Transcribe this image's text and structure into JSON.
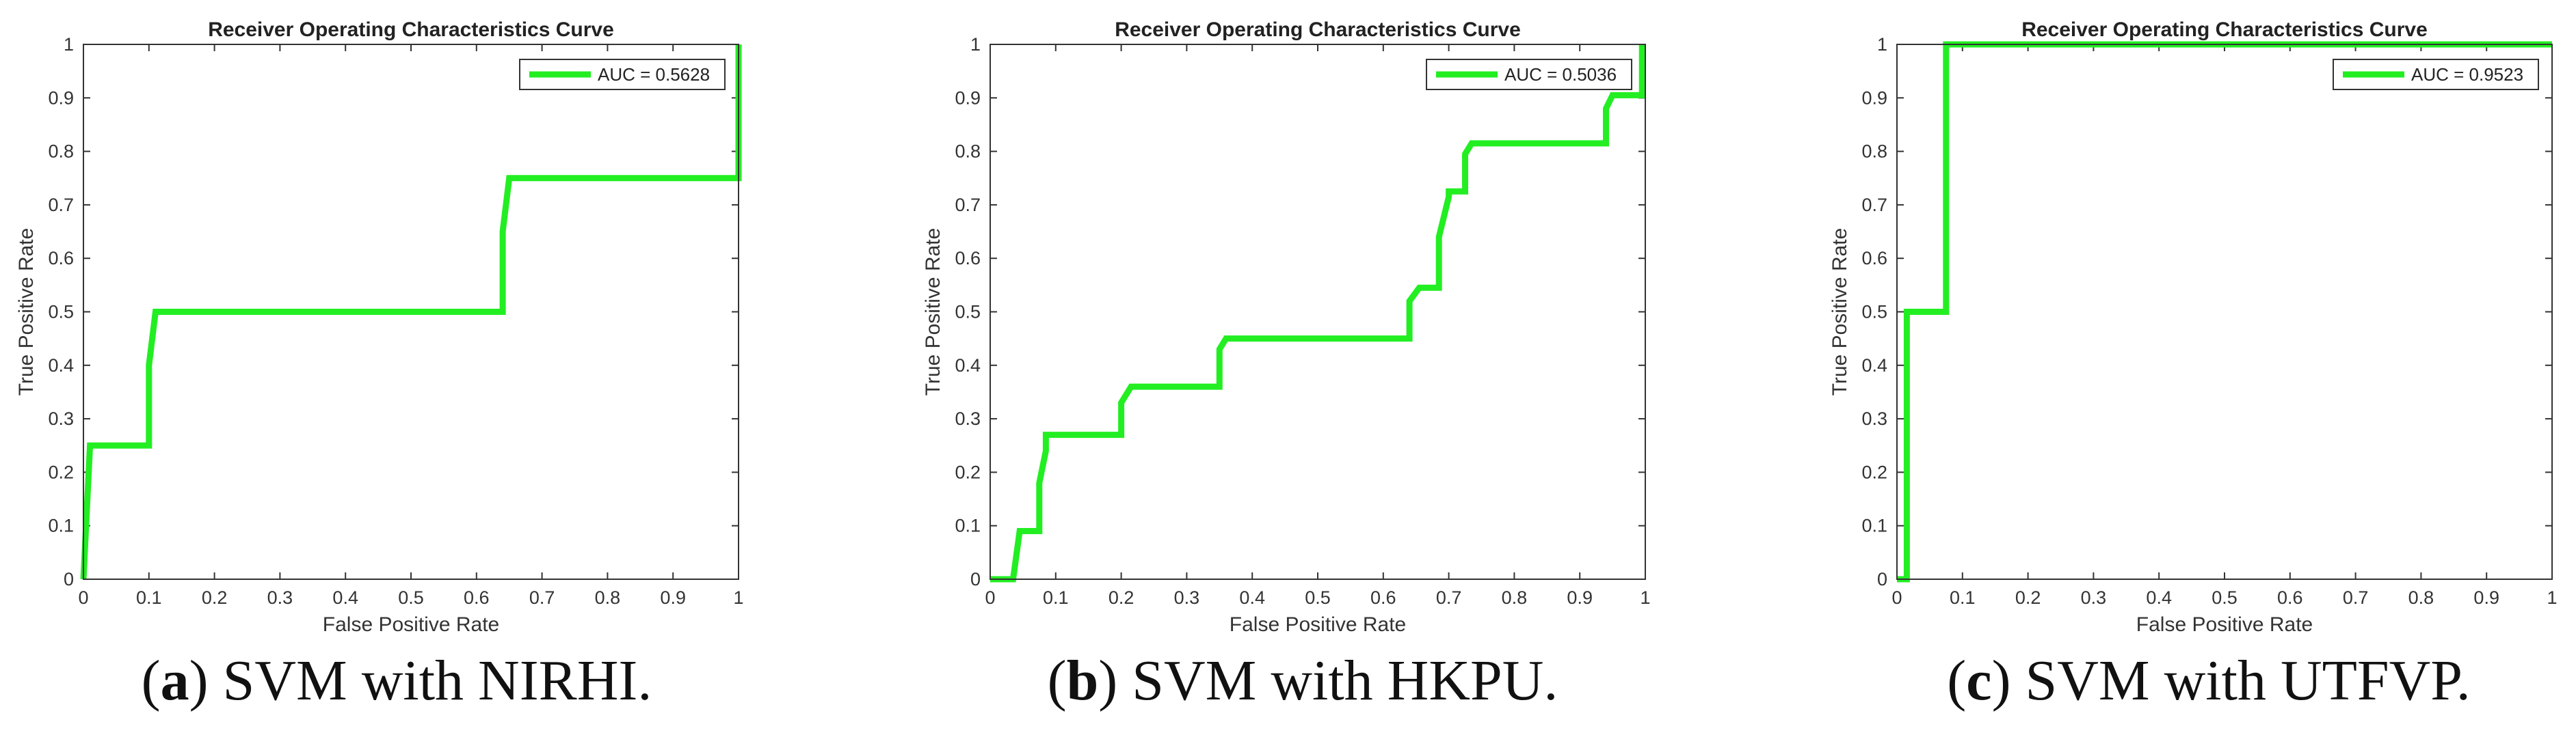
{
  "figure": {
    "line_color": "#22ee22"
  },
  "chart_data": [
    {
      "type": "line",
      "title": "Receiver Operating Characteristics Curve",
      "xlabel": "False Positive Rate",
      "ylabel": "True Positive Rate",
      "xlim": [
        0,
        1
      ],
      "ylim": [
        0,
        1
      ],
      "xticks": [
        "0",
        "0.1",
        "0.2",
        "0.3",
        "0.4",
        "0.5",
        "0.6",
        "0.7",
        "0.8",
        "0.9",
        "1"
      ],
      "yticks": [
        "0",
        "0.1",
        "0.2",
        "0.3",
        "0.4",
        "0.5",
        "0.6",
        "0.7",
        "0.8",
        "0.9",
        "1"
      ],
      "legend": "top-right",
      "grid": false,
      "series": [
        {
          "name": "AUC = 0.5628",
          "color": "#22ee22",
          "x": [
            0,
            0.01,
            0.01,
            0.1,
            0.1,
            0.11,
            0.11,
            0.64,
            0.64,
            0.65,
            0.65,
            1.0,
            1.0
          ],
          "y": [
            0,
            0.25,
            0.25,
            0.25,
            0.4,
            0.5,
            0.5,
            0.5,
            0.65,
            0.75,
            0.75,
            0.75,
            1.0
          ]
        }
      ],
      "caption": {
        "label": "a",
        "text": ") SVM with NIRHI."
      }
    },
    {
      "type": "line",
      "title": "Receiver Operating Characteristics Curve",
      "xlabel": "False Positive Rate",
      "ylabel": "True Positive Rate",
      "xlim": [
        0,
        1
      ],
      "ylim": [
        0,
        1
      ],
      "xticks": [
        "0",
        "0.1",
        "0.2",
        "0.3",
        "0.4",
        "0.5",
        "0.6",
        "0.7",
        "0.8",
        "0.9",
        "1"
      ],
      "yticks": [
        "0",
        "0.1",
        "0.2",
        "0.3",
        "0.4",
        "0.5",
        "0.6",
        "0.7",
        "0.8",
        "0.9",
        "1"
      ],
      "legend": "top-right",
      "grid": false,
      "series": [
        {
          "name": "AUC = 0.5036",
          "color": "#22ee22",
          "x": [
            0,
            0.035,
            0.045,
            0.045,
            0.075,
            0.075,
            0.085,
            0.085,
            0.2,
            0.2,
            0.215,
            0.215,
            0.35,
            0.35,
            0.36,
            0.36,
            0.64,
            0.64,
            0.655,
            0.655,
            0.685,
            0.685,
            0.7,
            0.7,
            0.725,
            0.725,
            0.735,
            0.735,
            0.94,
            0.94,
            0.95,
            0.95,
            0.995,
            0.995
          ],
          "y": [
            0,
            0,
            0.09,
            0.09,
            0.09,
            0.18,
            0.24,
            0.27,
            0.27,
            0.33,
            0.36,
            0.36,
            0.36,
            0.43,
            0.45,
            0.45,
            0.45,
            0.52,
            0.545,
            0.545,
            0.545,
            0.64,
            0.715,
            0.725,
            0.725,
            0.795,
            0.815,
            0.815,
            0.815,
            0.88,
            0.905,
            0.905,
            0.905,
            1.0
          ]
        }
      ],
      "caption": {
        "label": "b",
        "text": ") SVM with HKPU."
      }
    },
    {
      "type": "line",
      "title": "Receiver Operating Characteristics Curve",
      "xlabel": "False Positive Rate",
      "ylabel": "True Positive Rate",
      "xlim": [
        0,
        1
      ],
      "ylim": [
        0,
        1
      ],
      "xticks": [
        "0",
        "0.1",
        "0.2",
        "0.3",
        "0.4",
        "0.5",
        "0.6",
        "0.7",
        "0.8",
        "0.9",
        "1"
      ],
      "yticks": [
        "0",
        "0.1",
        "0.2",
        "0.3",
        "0.4",
        "0.5",
        "0.6",
        "0.7",
        "0.8",
        "0.9",
        "1"
      ],
      "legend": "top-right",
      "grid": false,
      "series": [
        {
          "name": "AUC = 0.9523",
          "color": "#22ee22",
          "x": [
            0,
            0.015,
            0.015,
            0.075,
            0.075,
            1.0
          ],
          "y": [
            0,
            0,
            0.5,
            0.5,
            1.0,
            1.0
          ]
        }
      ],
      "caption": {
        "label": "c",
        "text": ") SVM with UTFVP."
      }
    }
  ]
}
